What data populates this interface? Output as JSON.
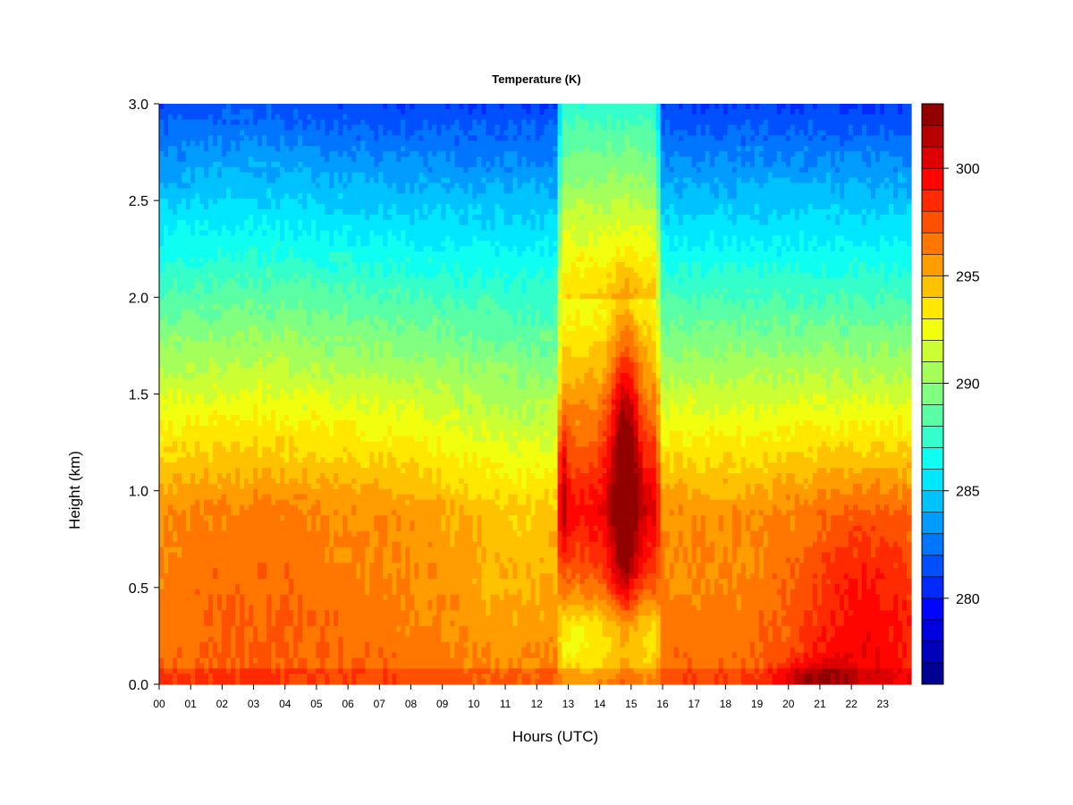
{
  "chart_data": {
    "type": "heatmap",
    "title": "Temperature (K)",
    "xlabel": "Hours (UTC)",
    "ylabel": "Height (km)",
    "x_ticks": [
      "00",
      "01",
      "02",
      "03",
      "04",
      "05",
      "06",
      "07",
      "08",
      "09",
      "10",
      "11",
      "12",
      "13",
      "14",
      "15",
      "16",
      "17",
      "18",
      "19",
      "20",
      "21",
      "22",
      "23"
    ],
    "xlim": [
      0,
      23.9
    ],
    "y_ticks": [
      "0.0",
      "0.5",
      "1.0",
      "1.5",
      "2.0",
      "2.5",
      "3.0"
    ],
    "ylim": [
      0,
      3.0
    ],
    "colorbar": {
      "ticks": [
        "280",
        "285",
        "290",
        "295",
        "300"
      ],
      "range": [
        276,
        303
      ],
      "levels": 27
    },
    "z_summary": {
      "surface_night_K": 298,
      "top_3km_K": 279,
      "warm_plume_max_K": 302,
      "warm_plume_hours": [
        12.6,
        16.0
      ],
      "warm_plume_core_hours": [
        14.2,
        15.4
      ],
      "warm_plume_core_height_km": [
        0.4,
        2.0
      ]
    }
  }
}
